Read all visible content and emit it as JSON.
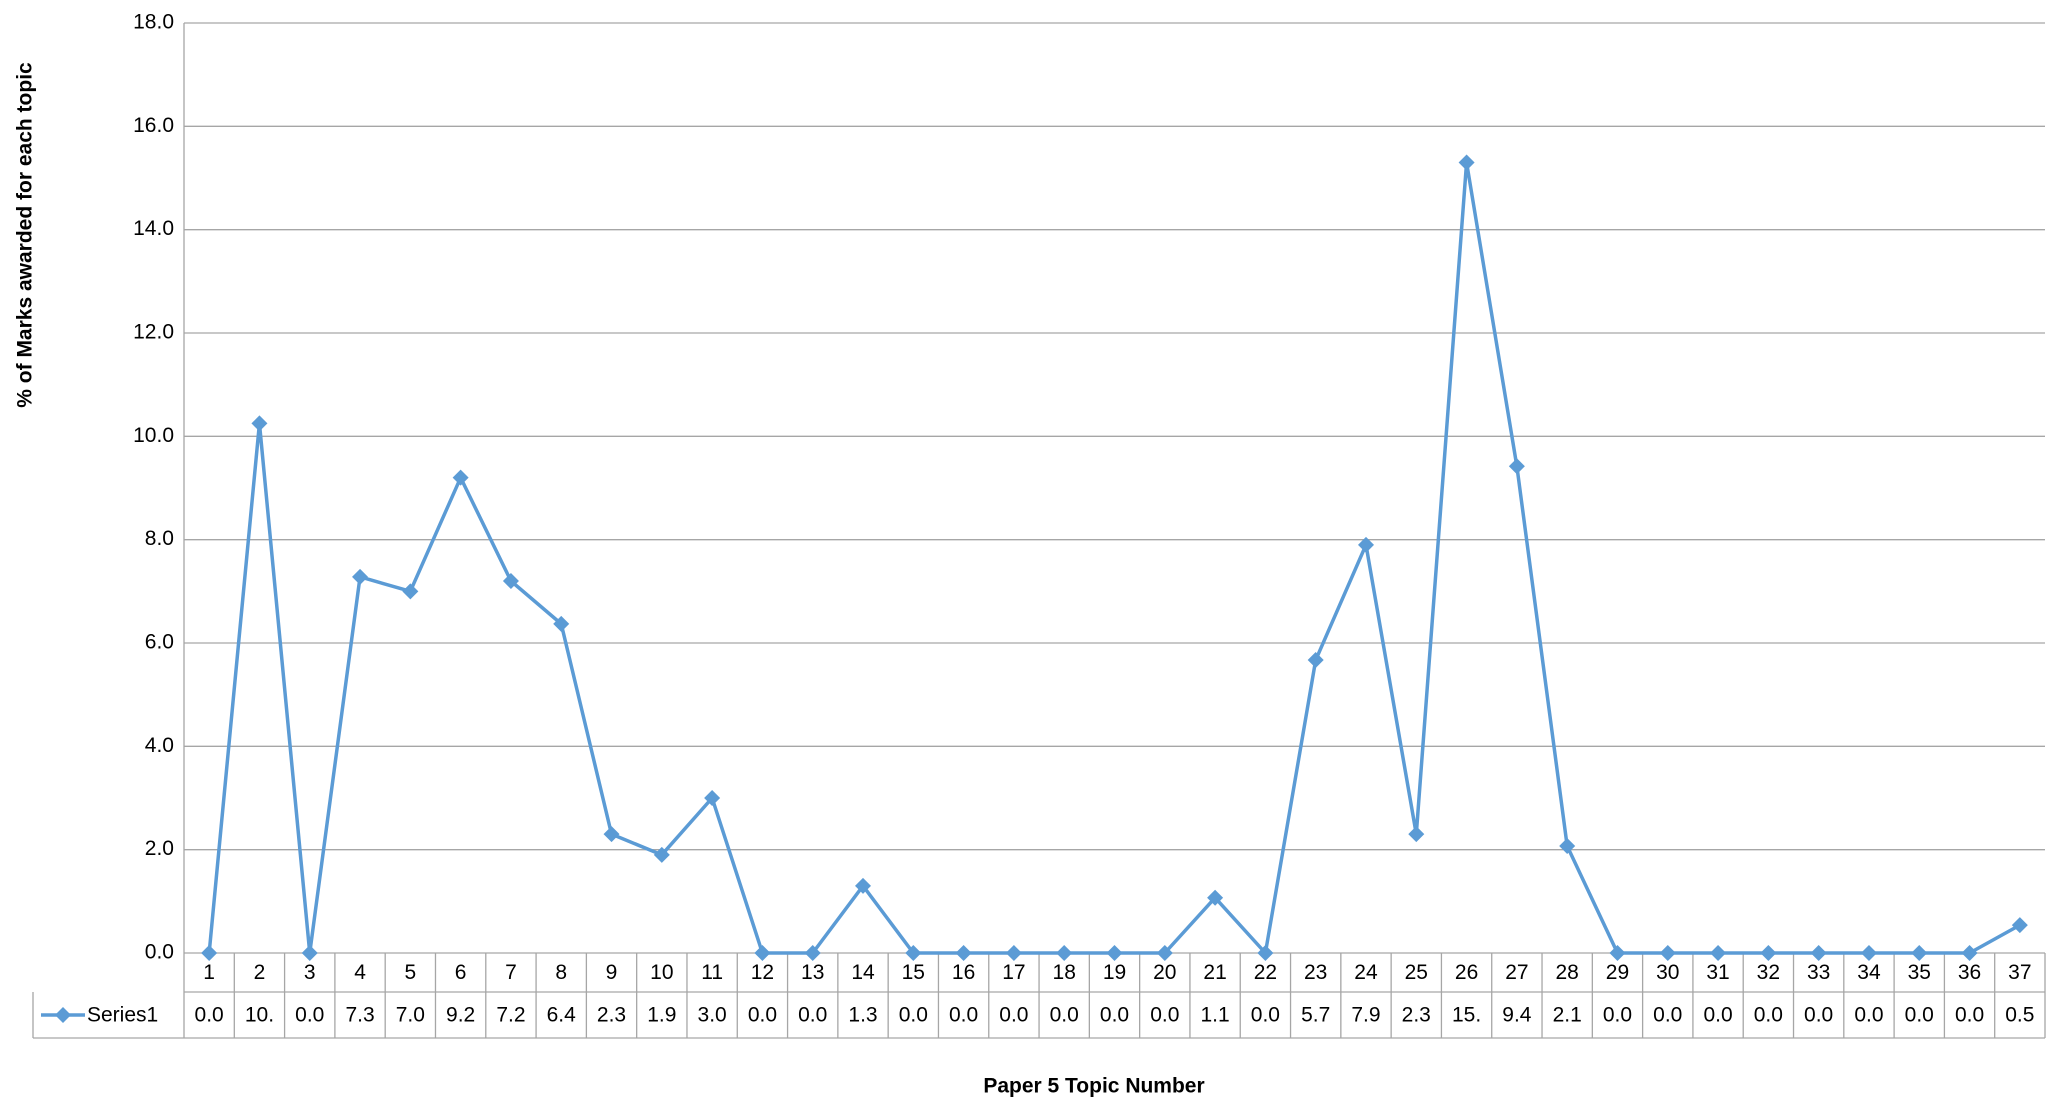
{
  "chart_data": {
    "type": "line",
    "y_label": "% of Marks awarded for each topic",
    "x_label": "Paper 5 Topic Number",
    "categories": [
      "1",
      "2",
      "3",
      "4",
      "5",
      "6",
      "7",
      "8",
      "9",
      "10",
      "11",
      "12",
      "13",
      "14",
      "15",
      "16",
      "17",
      "18",
      "19",
      "20",
      "21",
      "22",
      "23",
      "24",
      "25",
      "26",
      "27",
      "28",
      "29",
      "30",
      "31",
      "32",
      "33",
      "34",
      "35",
      "36",
      "37"
    ],
    "series": [
      {
        "name": "Series1",
        "color": "#5b9bd5",
        "values": [
          0,
          10.25,
          0,
          7.28,
          7.0,
          9.2,
          7.2,
          6.37,
          2.3,
          1.9,
          3.0,
          0,
          0,
          1.3,
          0,
          0,
          0,
          0,
          0,
          0,
          1.07,
          0,
          5.67,
          7.9,
          2.3,
          15.3,
          9.42,
          2.07,
          0,
          0,
          0,
          0,
          0,
          0,
          0,
          0,
          0.54
        ],
        "value_labels": [
          "0.0",
          "10.",
          "0.0",
          "7.3",
          "7.0",
          "9.2",
          "7.2",
          "6.4",
          "2.3",
          "1.9",
          "3.0",
          "0.0",
          "0.0",
          "1.3",
          "0.0",
          "0.0",
          "0.0",
          "0.0",
          "0.0",
          "0.0",
          "1.1",
          "0.0",
          "5.7",
          "7.9",
          "2.3",
          "15.",
          "9.4",
          "2.1",
          "0.0",
          "0.0",
          "0.0",
          "0.0",
          "0.0",
          "0.0",
          "0.0",
          "0.0",
          "0.5"
        ]
      }
    ],
    "ylim": [
      0,
      18
    ],
    "yticks": [
      {
        "value": 0,
        "label": "0.0"
      },
      {
        "value": 2,
        "label": "2.0"
      },
      {
        "value": 4,
        "label": "4.0"
      },
      {
        "value": 6,
        "label": "6.0"
      },
      {
        "value": 8,
        "label": "8.0"
      },
      {
        "value": 10,
        "label": "10.0"
      },
      {
        "value": 12,
        "label": "12.0"
      },
      {
        "value": 14,
        "label": "14.0"
      },
      {
        "value": 16,
        "label": "16.0"
      },
      {
        "value": 18,
        "label": "18.0"
      }
    ],
    "grid": true
  }
}
